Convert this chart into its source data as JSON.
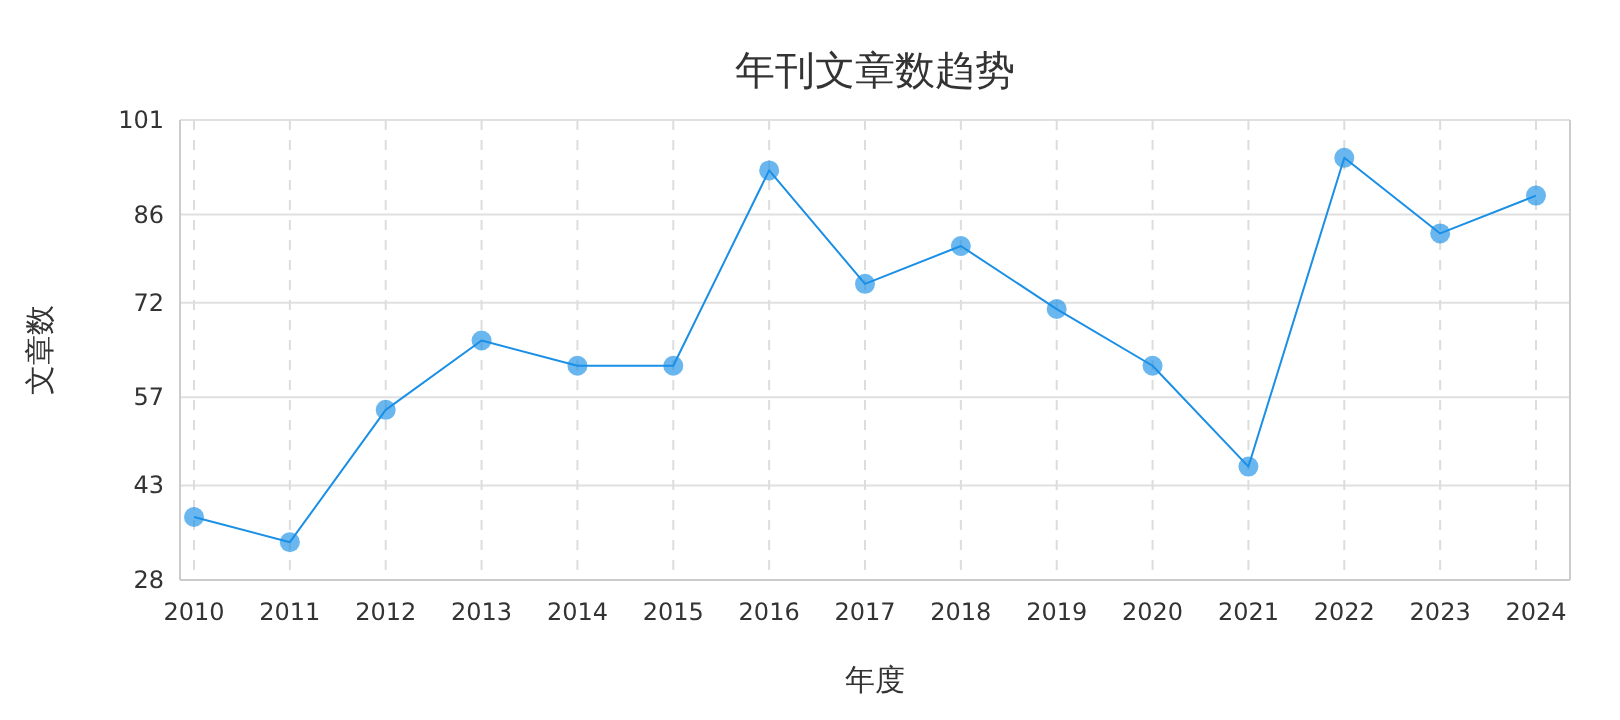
{
  "chart_data": {
    "type": "line",
    "title": "年刊文章数趋势",
    "xlabel": "年度",
    "ylabel": "文章数",
    "categories": [
      "2010",
      "2011",
      "2012",
      "2013",
      "2014",
      "2015",
      "2016",
      "2017",
      "2018",
      "2019",
      "2020",
      "2021",
      "2022",
      "2023",
      "2024"
    ],
    "series": [
      {
        "color": "#1a8fe6",
        "values": [
          38,
          34,
          55,
          66,
          62,
          62,
          93,
          75,
          81,
          71,
          62,
          46,
          95,
          83,
          89
        ]
      }
    ],
    "ylim": [
      28,
      101
    ],
    "yticks": [
      28,
      43,
      57,
      72,
      86,
      101
    ],
    "grid": true,
    "marker": "circle",
    "line_style": "solid"
  }
}
